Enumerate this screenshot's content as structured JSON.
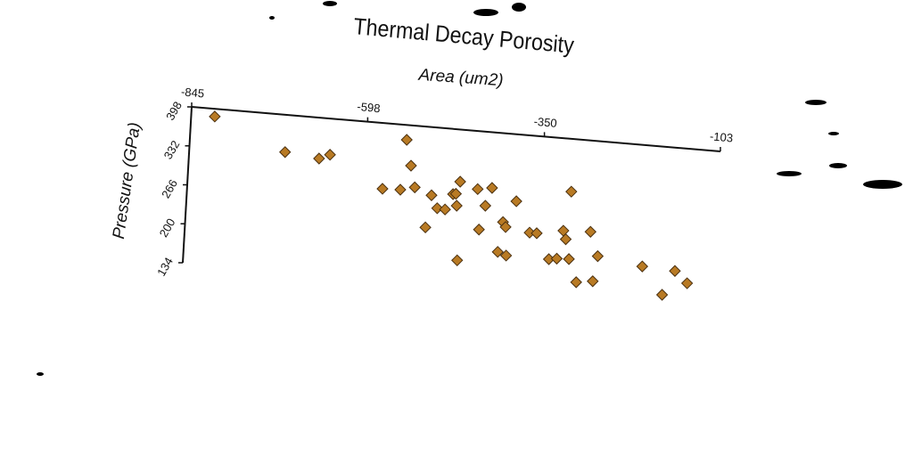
{
  "chart_data": {
    "type": "scatter",
    "title": "Thermal Decay Porosity",
    "x_label": "Area (um2)",
    "y_label": "Pressure (GPa)",
    "color": "#b87a24",
    "xlim": [
      -845,
      -103
    ],
    "xticks": [
      -845,
      -598,
      -350,
      -103
    ],
    "ylim": [
      134,
      398
    ],
    "yticks": [
      134,
      200,
      266,
      332,
      398
    ],
    "series": [
      {
        "x": [
          -812,
          -711,
          -663,
          -648,
          -572,
          -547,
          -542,
          -534,
          -527,
          -509,
          -503,
          -494,
          -483,
          -473,
          -467,
          -469,
          -464,
          -462,
          -439,
          -434,
          -427,
          -419,
          -406,
          -401,
          -397,
          -394,
          -384,
          -363,
          -353,
          -334,
          -323,
          -316,
          -312,
          -308,
          -306,
          -294,
          -278,
          -271,
          -266,
          -203,
          -173,
          -157,
          -139
        ],
        "values": [
          385,
          335,
          329,
          337,
          287,
          288,
          373,
          330,
          294,
          228,
          283,
          262,
          261,
          288,
          269,
          289,
          310,
          177,
          300,
          232,
          273,
          304,
          197,
          248,
          240,
          192,
          285,
          234,
          234,
          192,
          194,
          242,
          228,
          309,
          195,
          157,
          244,
          161,
          204,
          193,
          148,
          190,
          171
        ]
      }
    ]
  }
}
